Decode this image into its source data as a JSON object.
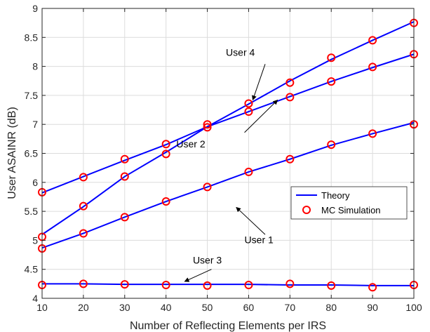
{
  "chart_data": {
    "type": "line",
    "xlabel": "Number of Reflecting Elements per IRS",
    "ylabel": "User ASAINR (dB)",
    "xlim": [
      10,
      100
    ],
    "ylim": [
      4,
      9
    ],
    "xticks": [
      10,
      20,
      30,
      40,
      50,
      60,
      70,
      80,
      90,
      100
    ],
    "yticks": [
      4,
      4.5,
      5,
      5.5,
      6,
      6.5,
      7,
      7.5,
      8,
      8.5,
      9
    ],
    "ytick_labels": [
      "4",
      "4.5",
      "5",
      "5.5",
      "6",
      "6.5",
      "7",
      "7.5",
      "8",
      "8.5",
      "9"
    ],
    "grid": true,
    "legend_position": "center-right",
    "x": [
      10,
      20,
      30,
      40,
      50,
      60,
      70,
      80,
      90,
      100
    ],
    "series": [
      {
        "name": "Theory",
        "role": "line",
        "color": "#0000ff",
        "curve": "user1",
        "values": [
          4.87,
          5.12,
          5.4,
          5.67,
          5.92,
          6.18,
          6.4,
          6.64,
          6.84,
          7.03
        ]
      },
      {
        "name": "Theory",
        "role": "line",
        "color": "#0000ff",
        "curve": "user2",
        "values": [
          5.82,
          6.1,
          6.38,
          6.65,
          6.96,
          7.22,
          7.48,
          7.74,
          7.98,
          8.21
        ]
      },
      {
        "name": "Theory",
        "role": "line",
        "color": "#0000ff",
        "curve": "user3",
        "values": [
          4.25,
          4.25,
          4.24,
          4.24,
          4.24,
          4.24,
          4.23,
          4.23,
          4.22,
          4.22
        ]
      },
      {
        "name": "Theory",
        "role": "line",
        "color": "#0000ff",
        "curve": "user4",
        "values": [
          5.1,
          5.58,
          6.1,
          6.52,
          6.96,
          7.35,
          7.75,
          8.12,
          8.45,
          8.77
        ]
      },
      {
        "name": "MC Simulation",
        "role": "marker",
        "color": "#ff0000",
        "curve": "user1",
        "values": [
          4.86,
          5.12,
          5.4,
          5.67,
          5.92,
          6.18,
          6.4,
          6.65,
          6.84,
          7.0
        ]
      },
      {
        "name": "MC Simulation",
        "role": "marker",
        "color": "#ff0000",
        "curve": "user2",
        "values": [
          5.83,
          6.09,
          6.4,
          6.66,
          6.95,
          7.22,
          7.47,
          7.74,
          7.99,
          8.21
        ]
      },
      {
        "name": "MC Simulation",
        "role": "marker",
        "color": "#ff0000",
        "curve": "user3",
        "values": [
          4.23,
          4.25,
          4.24,
          4.23,
          4.22,
          4.23,
          4.25,
          4.22,
          4.19,
          4.23
        ]
      },
      {
        "name": "MC Simulation",
        "role": "marker",
        "color": "#ff0000",
        "curve": "user4",
        "values": [
          5.06,
          5.59,
          6.1,
          6.49,
          7.0,
          7.36,
          7.72,
          8.15,
          8.45,
          8.75
        ]
      }
    ],
    "legend": [
      {
        "label": "Theory",
        "kind": "line",
        "color": "#0000ff"
      },
      {
        "label": "MC Simulation",
        "kind": "marker",
        "color": "#ff0000"
      }
    ],
    "annotations": [
      {
        "text": "User 4",
        "text_at": [
          58,
          8.18
        ],
        "arrow_from": [
          64,
          8.04
        ],
        "arrow_to": [
          61,
          7.42
        ]
      },
      {
        "text": "User 2",
        "text_at": [
          46,
          6.6
        ],
        "arrow_from": [
          59,
          6.86
        ],
        "arrow_to": [
          67,
          7.42
        ]
      },
      {
        "text": "User 1",
        "text_at": [
          62.5,
          4.95
        ],
        "arrow_from": [
          64,
          5.1
        ],
        "arrow_to": [
          57,
          5.57
        ]
      },
      {
        "text": "User 3",
        "text_at": [
          50,
          4.6
        ],
        "arrow_from": [
          51,
          4.5
        ],
        "arrow_to": [
          44.5,
          4.29
        ]
      }
    ]
  }
}
